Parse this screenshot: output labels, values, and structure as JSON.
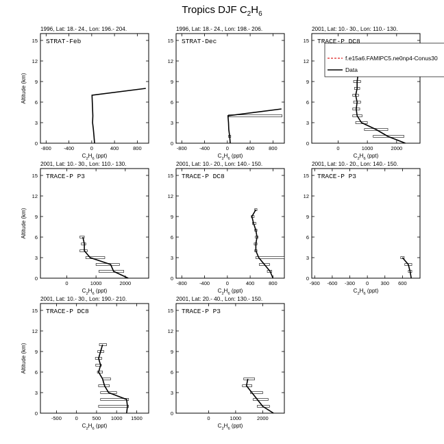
{
  "figure": {
    "title_prefix": "Tropics DJF C",
    "title_sub1": "2",
    "title_mid": "H",
    "title_sub2": "6",
    "ylabel": "Altitude (km)",
    "xlabel_prefix": "C",
    "xlabel_sub1": "2",
    "xlabel_mid": "H",
    "xlabel_sub2": "6",
    "xlabel_suffix": " (ppt)",
    "legend": {
      "model_label": "f.e15a6.FAMIPC5.ne0np4-Conus30",
      "data_label": "Data",
      "model_color": "#dd2222",
      "data_color": "#000000"
    }
  },
  "chart_data": [
    {
      "type": "line",
      "header": "1996, Lat: 18.- 24., Lon: 196.- 204.",
      "campaign": "STRAT-Feb",
      "xlim": [
        -900,
        1000
      ],
      "xticks": [
        -800,
        -400,
        0,
        400,
        800
      ],
      "ylim": [
        0,
        16
      ],
      "yticks": [
        0,
        3,
        6,
        9,
        12,
        15
      ],
      "data": {
        "y": [
          0,
          1,
          2,
          3,
          4,
          5,
          6,
          7,
          8
        ],
        "x": [
          50,
          40,
          30,
          15,
          20,
          15,
          10,
          5,
          950
        ]
      },
      "bars": []
    },
    {
      "type": "line",
      "header": "1996, Lat: 18.- 24., Lon: 198.- 206.",
      "campaign": "STRAT-Dec",
      "xlim": [
        -900,
        1000
      ],
      "xticks": [
        -800,
        -400,
        0,
        400,
        800
      ],
      "ylim": [
        0,
        16
      ],
      "yticks": [
        0,
        3,
        6,
        9,
        12,
        15
      ],
      "data": {
        "y": [
          0,
          1,
          2,
          3,
          4,
          5
        ],
        "x": [
          50,
          40,
          25,
          20,
          10,
          950
        ]
      },
      "bars": [
        {
          "y": 1,
          "xmin": 20,
          "xmax": 60
        },
        {
          "y": 4,
          "xmin": 20,
          "xmax": 960
        }
      ]
    },
    {
      "type": "line",
      "header": "2001, Lat: 10.- 30., Lon: 110.- 130.",
      "campaign": "TRACE-P DC8",
      "xlim": [
        -900,
        2800
      ],
      "xticks": [
        0,
        1000,
        2000
      ],
      "ylim": [
        0,
        16
      ],
      "yticks": [
        0,
        3,
        6,
        9,
        12,
        15
      ],
      "data": {
        "y": [
          0,
          1,
          2,
          3,
          4,
          5,
          6,
          7,
          8,
          9,
          10
        ],
        "x": [
          2300,
          1700,
          1300,
          800,
          650,
          620,
          650,
          600,
          650,
          650,
          680
        ]
      },
      "bars": [
        {
          "y": 1,
          "xmin": 1200,
          "xmax": 2250
        },
        {
          "y": 2,
          "xmin": 900,
          "xmax": 1700
        },
        {
          "y": 3,
          "xmin": 600,
          "xmax": 1000
        },
        {
          "y": 4,
          "xmin": 500,
          "xmax": 820
        },
        {
          "y": 5,
          "xmin": 500,
          "xmax": 740
        },
        {
          "y": 6,
          "xmin": 530,
          "xmax": 770
        },
        {
          "y": 7,
          "xmin": 500,
          "xmax": 700
        },
        {
          "y": 8,
          "xmin": 560,
          "xmax": 740
        },
        {
          "y": 9,
          "xmin": 530,
          "xmax": 770
        },
        {
          "y": 10,
          "xmin": 580,
          "xmax": 780
        }
      ]
    },
    {
      "type": "line",
      "header": "2001, Lat: 10.- 30., Lon: 110.- 130.",
      "campaign": "TRACE-P P3",
      "xlim": [
        -900,
        2800
      ],
      "xticks": [
        0,
        1000,
        2000
      ],
      "ylim": [
        0,
        16
      ],
      "yticks": [
        0,
        3,
        6,
        9,
        12,
        15
      ],
      "data": {
        "y": [
          0,
          1,
          2,
          3,
          4,
          5,
          6
        ],
        "x": [
          2100,
          1600,
          1500,
          800,
          600,
          600,
          550
        ]
      },
      "bars": [
        {
          "y": 1,
          "xmin": 1100,
          "xmax": 1950
        },
        {
          "y": 2,
          "xmin": 1000,
          "xmax": 1800
        },
        {
          "y": 3,
          "xmin": 650,
          "xmax": 1300
        },
        {
          "y": 4,
          "xmin": 450,
          "xmax": 700
        },
        {
          "y": 5,
          "xmin": 500,
          "xmax": 650
        },
        {
          "y": 6,
          "xmin": 450,
          "xmax": 600
        }
      ]
    },
    {
      "type": "line",
      "header": "2001, Lat: 10.- 20., Lon: 140.- 150.",
      "campaign": "TRACE-P DC8",
      "xlim": [
        -900,
        1000
      ],
      "xticks": [
        -800,
        -400,
        0,
        400,
        800
      ],
      "ylim": [
        0,
        16
      ],
      "yticks": [
        0,
        3,
        6,
        9,
        12,
        15
      ],
      "data": {
        "y": [
          0,
          1,
          2,
          3,
          4,
          5,
          6,
          7,
          8,
          9,
          10
        ],
        "x": [
          800,
          750,
          650,
          550,
          500,
          500,
          520,
          500,
          460,
          430,
          500
        ]
      },
      "bars": [
        {
          "y": 1,
          "xmin": 700,
          "xmax": 780
        },
        {
          "y": 2,
          "xmin": 560,
          "xmax": 740
        },
        {
          "y": 3,
          "xmin": 500,
          "xmax": 1000
        },
        {
          "y": 4,
          "xmin": 480,
          "xmax": 520
        },
        {
          "y": 5,
          "xmin": 470,
          "xmax": 520
        },
        {
          "y": 6,
          "xmin": 490,
          "xmax": 540
        },
        {
          "y": 7,
          "xmin": 480,
          "xmax": 520
        },
        {
          "y": 8,
          "xmin": 440,
          "xmax": 500
        },
        {
          "y": 9,
          "xmin": 420,
          "xmax": 470
        },
        {
          "y": 10,
          "xmin": 480,
          "xmax": 520
        }
      ]
    },
    {
      "type": "line",
      "header": "2001, Lat: 10.- 20., Lon: 140.- 150.",
      "campaign": "TRACE-P P3",
      "xlim": [
        -950,
        900
      ],
      "xticks": [
        -900,
        -600,
        -300,
        0,
        300,
        600
      ],
      "ylim": [
        0,
        16
      ],
      "yticks": [
        0,
        3,
        6,
        9,
        12,
        15
      ],
      "data": {
        "y": [
          0,
          1,
          2,
          3
        ],
        "x": [
          750,
          730,
          700,
          600
        ]
      },
      "bars": [
        {
          "y": 1,
          "xmin": 700,
          "xmax": 760
        },
        {
          "y": 2,
          "xmin": 640,
          "xmax": 760
        },
        {
          "y": 3,
          "xmin": 570,
          "xmax": 630
        }
      ]
    },
    {
      "type": "line",
      "header": "2001, Lat: 10.- 30., Lon: 190.- 210.",
      "campaign": "TRACE-P DC8",
      "xlim": [
        -900,
        1800
      ],
      "xticks": [
        -500,
        0,
        500,
        1000,
        1500
      ],
      "ylim": [
        0,
        16
      ],
      "yticks": [
        0,
        3,
        6,
        9,
        12,
        15
      ],
      "data": {
        "y": [
          0,
          1,
          2,
          3,
          4,
          5,
          6,
          7,
          8,
          9,
          10
        ],
        "x": [
          1250,
          1270,
          1250,
          800,
          700,
          650,
          550,
          600,
          550,
          600,
          650
        ]
      },
      "bars": [
        {
          "y": 1,
          "xmin": 550,
          "xmax": 1300
        },
        {
          "y": 2,
          "xmin": 600,
          "xmax": 1300
        },
        {
          "y": 3,
          "xmin": 600,
          "xmax": 1000
        },
        {
          "y": 4,
          "xmin": 550,
          "xmax": 820
        },
        {
          "y": 5,
          "xmin": 650,
          "xmax": 850
        },
        {
          "y": 6,
          "xmin": 520,
          "xmax": 650
        },
        {
          "y": 7,
          "xmin": 480,
          "xmax": 620
        },
        {
          "y": 8,
          "xmin": 470,
          "xmax": 630
        },
        {
          "y": 9,
          "xmin": 530,
          "xmax": 680
        },
        {
          "y": 10,
          "xmin": 570,
          "xmax": 750
        }
      ]
    },
    {
      "type": "line",
      "header": "2001, Lat: 20.- 40., Lon: 130.- 150.",
      "campaign": "TRACE-P P3",
      "xlim": [
        -1200,
        2800
      ],
      "xticks": [
        0,
        1000,
        2000
      ],
      "ylim": [
        0,
        16
      ],
      "yticks": [
        0,
        3,
        6,
        9,
        12,
        15
      ],
      "data": {
        "y": [
          0,
          1,
          2,
          3,
          4,
          5
        ],
        "x": [
          2400,
          2000,
          1800,
          1600,
          1400,
          1450
        ]
      },
      "bars": [
        {
          "y": 1,
          "xmin": 1800,
          "xmax": 2250
        },
        {
          "y": 2,
          "xmin": 1650,
          "xmax": 2200
        },
        {
          "y": 3,
          "xmin": 1550,
          "xmax": 2000
        },
        {
          "y": 4,
          "xmin": 1250,
          "xmax": 1600
        },
        {
          "y": 5,
          "xmin": 1300,
          "xmax": 1700
        }
      ]
    }
  ]
}
